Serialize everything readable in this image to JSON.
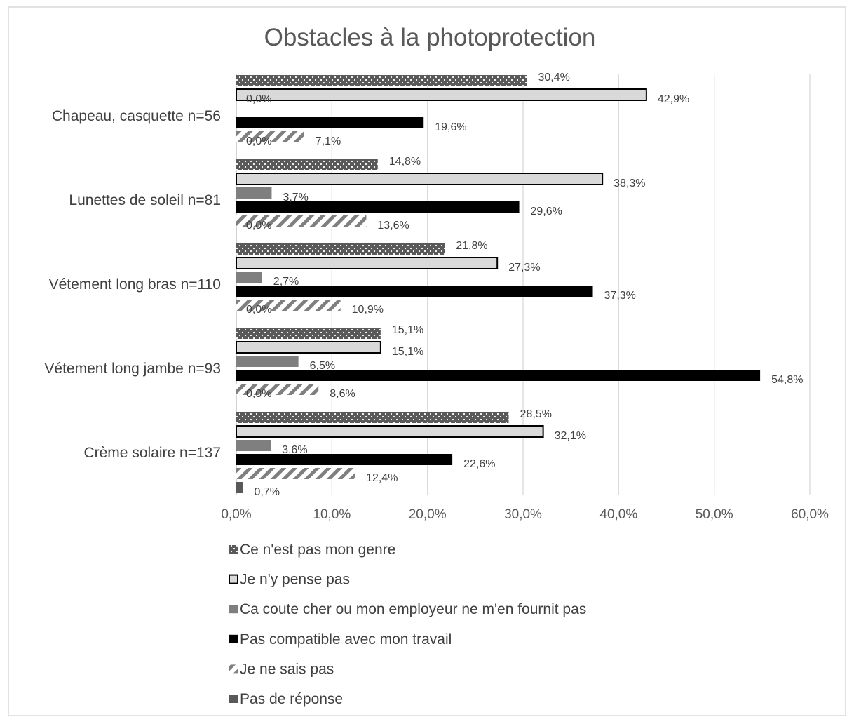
{
  "chart_data": {
    "type": "bar",
    "orientation": "horizontal",
    "title": "Obstacles à la photoprotection",
    "xlabel": "",
    "ylabel": "",
    "xlim": [
      0,
      60
    ],
    "x_ticks": [
      "0,0%",
      "10,0%",
      "20,0%",
      "30,0%",
      "40,0%",
      "50,0%",
      "60,0%"
    ],
    "grid": true,
    "legend_position": "bottom",
    "categories": [
      "Chapeau, casquette n=56",
      "Lunettes de soleil n=81",
      "Vétement long bras n=110",
      "Vétement long jambe n=93",
      "Crème solaire n=137"
    ],
    "series": [
      {
        "name": "Ce n'est pas mon genre",
        "pattern": "dots",
        "color": "#595959",
        "values": [
          30.4,
          14.8,
          21.8,
          15.1,
          28.5
        ],
        "labels": [
          "30,4%",
          "14,8%",
          "21,8%",
          "15,1%",
          "28,5%"
        ]
      },
      {
        "name": "Je n'y pense pas",
        "pattern": "outline",
        "color": "#d9d9d9",
        "values": [
          42.9,
          38.3,
          27.3,
          15.1,
          32.1
        ],
        "labels": [
          "42,9%",
          "38,3%",
          "27,3%",
          "15,1%",
          "32,1%"
        ]
      },
      {
        "name": "Ca coute cher ou mon employeur ne m'en fournit pas",
        "pattern": "solid",
        "color": "#7f7f7f",
        "values": [
          0.0,
          3.7,
          2.7,
          6.5,
          3.6
        ],
        "labels": [
          "0,0%",
          "3,7%",
          "2,7%",
          "6,5%",
          "3,6%"
        ]
      },
      {
        "name": "Pas compatible avec mon travail",
        "pattern": "solid",
        "color": "#000000",
        "values": [
          19.6,
          29.6,
          37.3,
          54.8,
          22.6
        ],
        "labels": [
          "19,6%",
          "29,6%",
          "37,3%",
          "54,8%",
          "22,6%"
        ]
      },
      {
        "name": "Je ne sais pas",
        "pattern": "diagonal",
        "color": "#7f7f7f",
        "values": [
          7.1,
          13.6,
          10.9,
          8.6,
          12.4
        ],
        "labels": [
          "7,1%",
          "13,6%",
          "10,9%",
          "8,6%",
          "12,4%"
        ]
      },
      {
        "name": "Pas de réponse",
        "pattern": "solid",
        "color": "#595959",
        "values": [
          0.0,
          0.0,
          0.0,
          0.0,
          0.7
        ],
        "labels": [
          "0,0%",
          "0,0%",
          "0,0%",
          "0,0%",
          "0,7%"
        ]
      }
    ]
  }
}
